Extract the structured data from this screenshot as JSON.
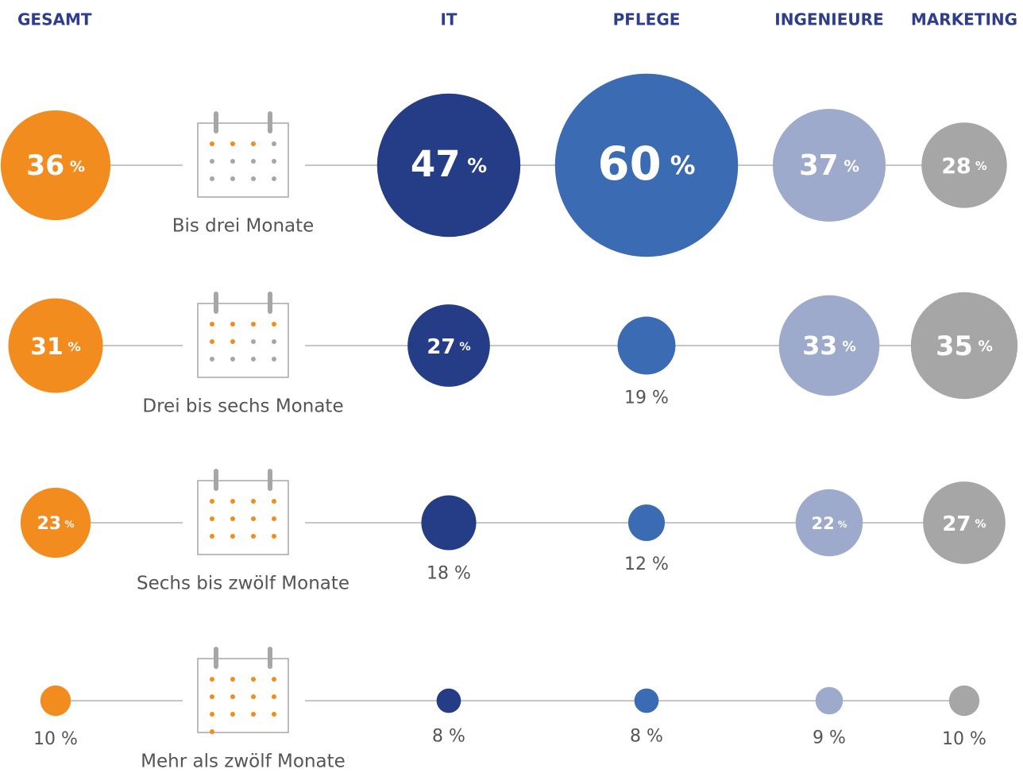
{
  "chart_data": {
    "type": "bubble",
    "categories": [
      "Bis drei Monate",
      "Drei bis sechs Monate",
      "Sechs bis zwölf Monate",
      "Mehr als zwölf Monate"
    ],
    "series": [
      {
        "name": "GESAMT",
        "color": "#f28c1e",
        "values": [
          36,
          31,
          23,
          10
        ],
        "value_labels": [
          "36 %",
          "31 %",
          "23 %",
          "10 %"
        ]
      },
      {
        "name": "IT",
        "color": "#253c87",
        "values": [
          47,
          27,
          18,
          8
        ],
        "value_labels": [
          "47 %",
          "27 %",
          "18 %",
          "8 %"
        ]
      },
      {
        "name": "PFLEGE",
        "color": "#3a6bb3",
        "values": [
          60,
          19,
          12,
          8
        ],
        "value_labels": [
          "60 %",
          "19 %",
          "12 %",
          "8 %"
        ]
      },
      {
        "name": "INGENIEURE",
        "color": "#9eaacb",
        "values": [
          37,
          33,
          22,
          9
        ],
        "value_labels": [
          "37 %",
          "33 %",
          "22 %",
          "9 %"
        ]
      },
      {
        "name": "MARKETING",
        "color": "#a6a6a6",
        "values": [
          28,
          35,
          27,
          10
        ],
        "value_labels": [
          "28 %",
          "35 %",
          "27 %",
          "10 %"
        ]
      }
    ]
  }
}
